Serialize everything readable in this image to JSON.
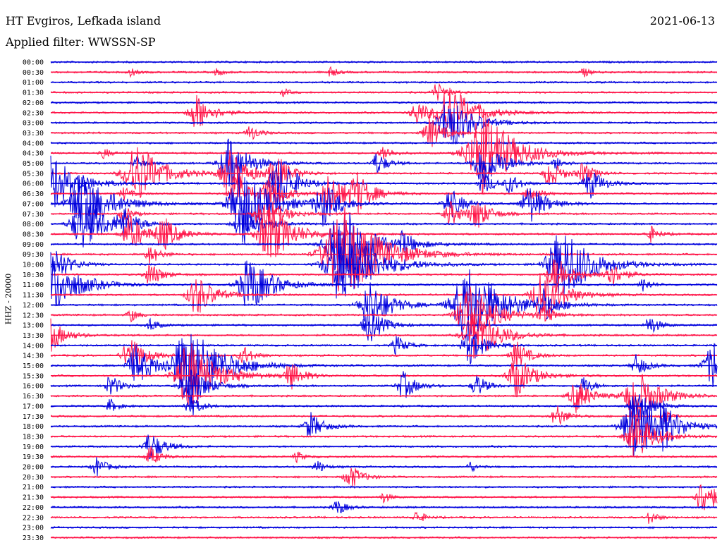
{
  "header": {
    "station": "HT Evgiros, Lefkada island",
    "date": "2021-06-13",
    "filter": "Applied filter: WWSSN-SP"
  },
  "chart_data": {
    "type": "line",
    "title": "HT Evgiros, Lefkada island",
    "subtitle": "Applied filter: WWSSN-SP",
    "ylabel": "HHZ - 20000",
    "colors": [
      "#0000dd",
      "#ff1448"
    ],
    "rows": [
      "00:00",
      "00:30",
      "01:00",
      "01:30",
      "02:00",
      "02:30",
      "03:00",
      "03:30",
      "04:00",
      "04:30",
      "05:00",
      "05:30",
      "06:00",
      "06:30",
      "07:00",
      "07:30",
      "08:00",
      "08:30",
      "09:00",
      "09:30",
      "10:00",
      "10:30",
      "11:00",
      "11:30",
      "12:00",
      "12:30",
      "13:00",
      "13:30",
      "14:00",
      "14:30",
      "15:00",
      "15:30",
      "16:00",
      "16:30",
      "17:00",
      "17:30",
      "18:00",
      "18:30",
      "19:00",
      "19:30",
      "20:00",
      "20:30",
      "21:00",
      "21:30",
      "22:00",
      "22:30",
      "23:00",
      "23:30"
    ],
    "bursts": [
      [
        1,
        0.42,
        8
      ],
      [
        1,
        0.12,
        6
      ],
      [
        1,
        0.25,
        6
      ],
      [
        1,
        0.8,
        7
      ],
      [
        3,
        0.58,
        14
      ],
      [
        3,
        0.35,
        6
      ],
      [
        5,
        0.22,
        26
      ],
      [
        5,
        0.55,
        18
      ],
      [
        5,
        0.6,
        42
      ],
      [
        6,
        0.6,
        40
      ],
      [
        7,
        0.3,
        12
      ],
      [
        7,
        0.57,
        22
      ],
      [
        9,
        0.65,
        60
      ],
      [
        9,
        0.08,
        8
      ],
      [
        9,
        0.5,
        12
      ],
      [
        10,
        0.65,
        34
      ],
      [
        10,
        0.27,
        36
      ],
      [
        10,
        0.13,
        10
      ],
      [
        10,
        0.49,
        16
      ],
      [
        10,
        0.76,
        10
      ],
      [
        11,
        0.13,
        45
      ],
      [
        11,
        0.27,
        32
      ],
      [
        11,
        0.34,
        24
      ],
      [
        11,
        0.75,
        20
      ],
      [
        11,
        0.8,
        16
      ],
      [
        12,
        0.0,
        45
      ],
      [
        12,
        0.34,
        28
      ],
      [
        12,
        0.35,
        20
      ],
      [
        12,
        0.65,
        16
      ],
      [
        12,
        0.69,
        14
      ],
      [
        12,
        0.81,
        22
      ],
      [
        13,
        0.11,
        10
      ],
      [
        13,
        0.28,
        26
      ],
      [
        13,
        0.33,
        24
      ],
      [
        13,
        0.42,
        30
      ],
      [
        13,
        0.46,
        26
      ],
      [
        13,
        0.72,
        14
      ],
      [
        14,
        0.05,
        48
      ],
      [
        14,
        0.29,
        50
      ],
      [
        14,
        0.41,
        30
      ],
      [
        14,
        0.6,
        22
      ],
      [
        14,
        0.72,
        28
      ],
      [
        15,
        0.11,
        12
      ],
      [
        15,
        0.32,
        30
      ],
      [
        15,
        0.6,
        18
      ],
      [
        15,
        0.64,
        22
      ],
      [
        16,
        0.05,
        40
      ],
      [
        16,
        0.11,
        20
      ],
      [
        16,
        0.29,
        30
      ],
      [
        17,
        0.12,
        26
      ],
      [
        17,
        0.17,
        24
      ],
      [
        17,
        0.33,
        42
      ],
      [
        17,
        0.9,
        12
      ],
      [
        18,
        0.44,
        56
      ],
      [
        18,
        0.53,
        14
      ],
      [
        19,
        0.15,
        14
      ],
      [
        19,
        0.44,
        70
      ],
      [
        20,
        0.44,
        60
      ],
      [
        20,
        0.77,
        54
      ],
      [
        20,
        0.01,
        24
      ],
      [
        21,
        0.15,
        18
      ],
      [
        21,
        0.76,
        28
      ],
      [
        21,
        0.84,
        20
      ],
      [
        22,
        0.0,
        48
      ],
      [
        22,
        0.3,
        40
      ],
      [
        22,
        0.89,
        10
      ],
      [
        23,
        0.22,
        30
      ],
      [
        23,
        0.74,
        38
      ],
      [
        24,
        0.63,
        60
      ],
      [
        24,
        0.74,
        20
      ],
      [
        24,
        0.48,
        36
      ],
      [
        25,
        0.12,
        10
      ],
      [
        25,
        0.63,
        44
      ],
      [
        25,
        0.74,
        14
      ],
      [
        26,
        0.48,
        24
      ],
      [
        26,
        0.9,
        14
      ],
      [
        26,
        0.15,
        10
      ],
      [
        27,
        0.0,
        24
      ],
      [
        27,
        0.64,
        40
      ],
      [
        28,
        0.52,
        14
      ],
      [
        28,
        0.63,
        26
      ],
      [
        29,
        0.12,
        26
      ],
      [
        29,
        0.29,
        14
      ],
      [
        29,
        0.7,
        20
      ],
      [
        30,
        0.13,
        30
      ],
      [
        30,
        0.21,
        60
      ],
      [
        30,
        0.88,
        16
      ],
      [
        30,
        1.0,
        40
      ],
      [
        31,
        0.21,
        50
      ],
      [
        31,
        0.36,
        20
      ],
      [
        31,
        0.7,
        30
      ],
      [
        32,
        0.21,
        30
      ],
      [
        32,
        0.09,
        16
      ],
      [
        32,
        0.53,
        20
      ],
      [
        32,
        0.64,
        16
      ],
      [
        32,
        0.8,
        14
      ],
      [
        33,
        0.88,
        40
      ],
      [
        33,
        0.79,
        24
      ],
      [
        34,
        0.88,
        24
      ],
      [
        34,
        0.21,
        16
      ],
      [
        34,
        0.09,
        10
      ],
      [
        35,
        0.76,
        16
      ],
      [
        35,
        0.92,
        10
      ],
      [
        36,
        0.88,
        48
      ],
      [
        36,
        0.39,
        20
      ],
      [
        36,
        0.92,
        22
      ],
      [
        37,
        0.88,
        34
      ],
      [
        38,
        0.15,
        22
      ],
      [
        39,
        0.15,
        14
      ],
      [
        39,
        0.37,
        8
      ],
      [
        40,
        0.07,
        14
      ],
      [
        40,
        0.4,
        10
      ],
      [
        40,
        0.63,
        8
      ],
      [
        41,
        0.45,
        18
      ],
      [
        43,
        0.98,
        26
      ],
      [
        43,
        0.5,
        8
      ],
      [
        44,
        0.43,
        12
      ],
      [
        45,
        0.55,
        10
      ],
      [
        45,
        0.9,
        10
      ]
    ]
  }
}
